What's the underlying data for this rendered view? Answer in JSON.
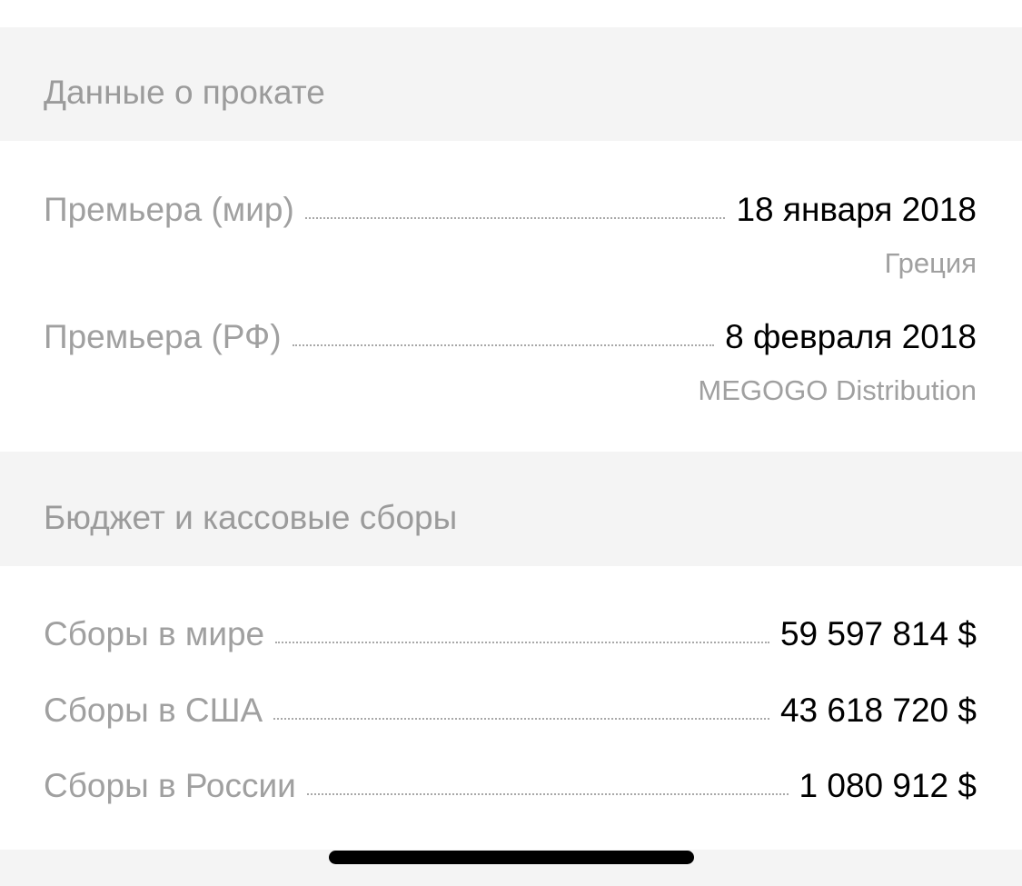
{
  "release": {
    "title": "Данные о прокате",
    "rows": [
      {
        "label": "Премьера (мир)",
        "value": "18 января 2018",
        "sub": "Греция"
      },
      {
        "label": "Премьера (РФ)",
        "value": "8 февраля 2018",
        "sub": "MEGOGO Distribution"
      }
    ]
  },
  "box_office": {
    "title": "Бюджет и кассовые сборы",
    "rows": [
      {
        "label": "Сборы в мире",
        "value": "59 597 814 $"
      },
      {
        "label": "Сборы в США",
        "value": "43 618 720 $"
      },
      {
        "label": "Сборы в России",
        "value": "1 080 912 $"
      }
    ]
  }
}
